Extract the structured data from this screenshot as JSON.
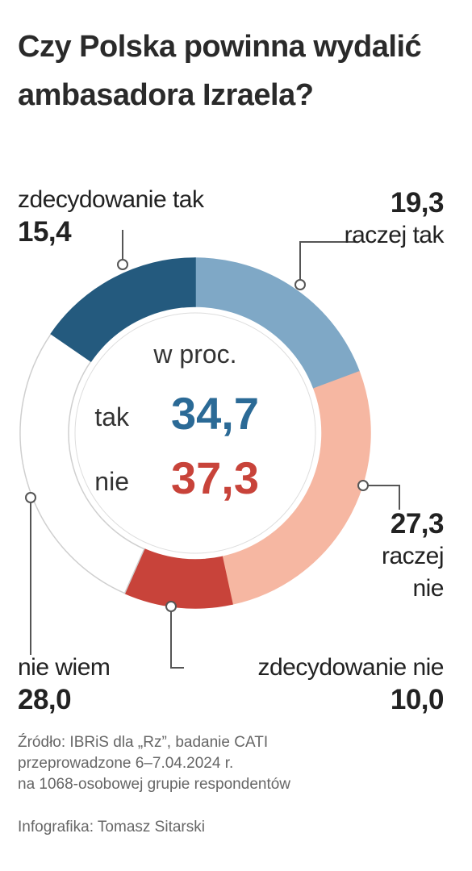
{
  "chart_data": {
    "type": "pie",
    "title": "Czy Polska powinna wydalić ambasadora Izraela?",
    "center_label": "w proc.",
    "center_values": [
      {
        "name": "tak",
        "text": "34,7",
        "color": "#2b6a96"
      },
      {
        "name": "nie",
        "text": "37,3",
        "color": "#c8433a"
      }
    ],
    "categories": [
      "raczej tak",
      "raczej nie",
      "zdecydowanie nie",
      "nie wiem",
      "zdecydowanie tak"
    ],
    "values": [
      19.3,
      27.3,
      10.0,
      28.0,
      15.4
    ],
    "value_labels": [
      "19,3",
      "27,3",
      "10,0",
      "28,0",
      "15,4"
    ],
    "colors": [
      "#7fa8c6",
      "#f6b7a2",
      "#c8433a",
      "#ffffff",
      "#245a7e"
    ],
    "source": [
      "Źródło: IBRiS dla „Rz”, badanie CATI",
      "przeprowadzone 6–7.04.2024 r.",
      "na 1068-osobowej grupie respondentów"
    ],
    "credit": "Infografika: Tomasz Sitarski"
  }
}
